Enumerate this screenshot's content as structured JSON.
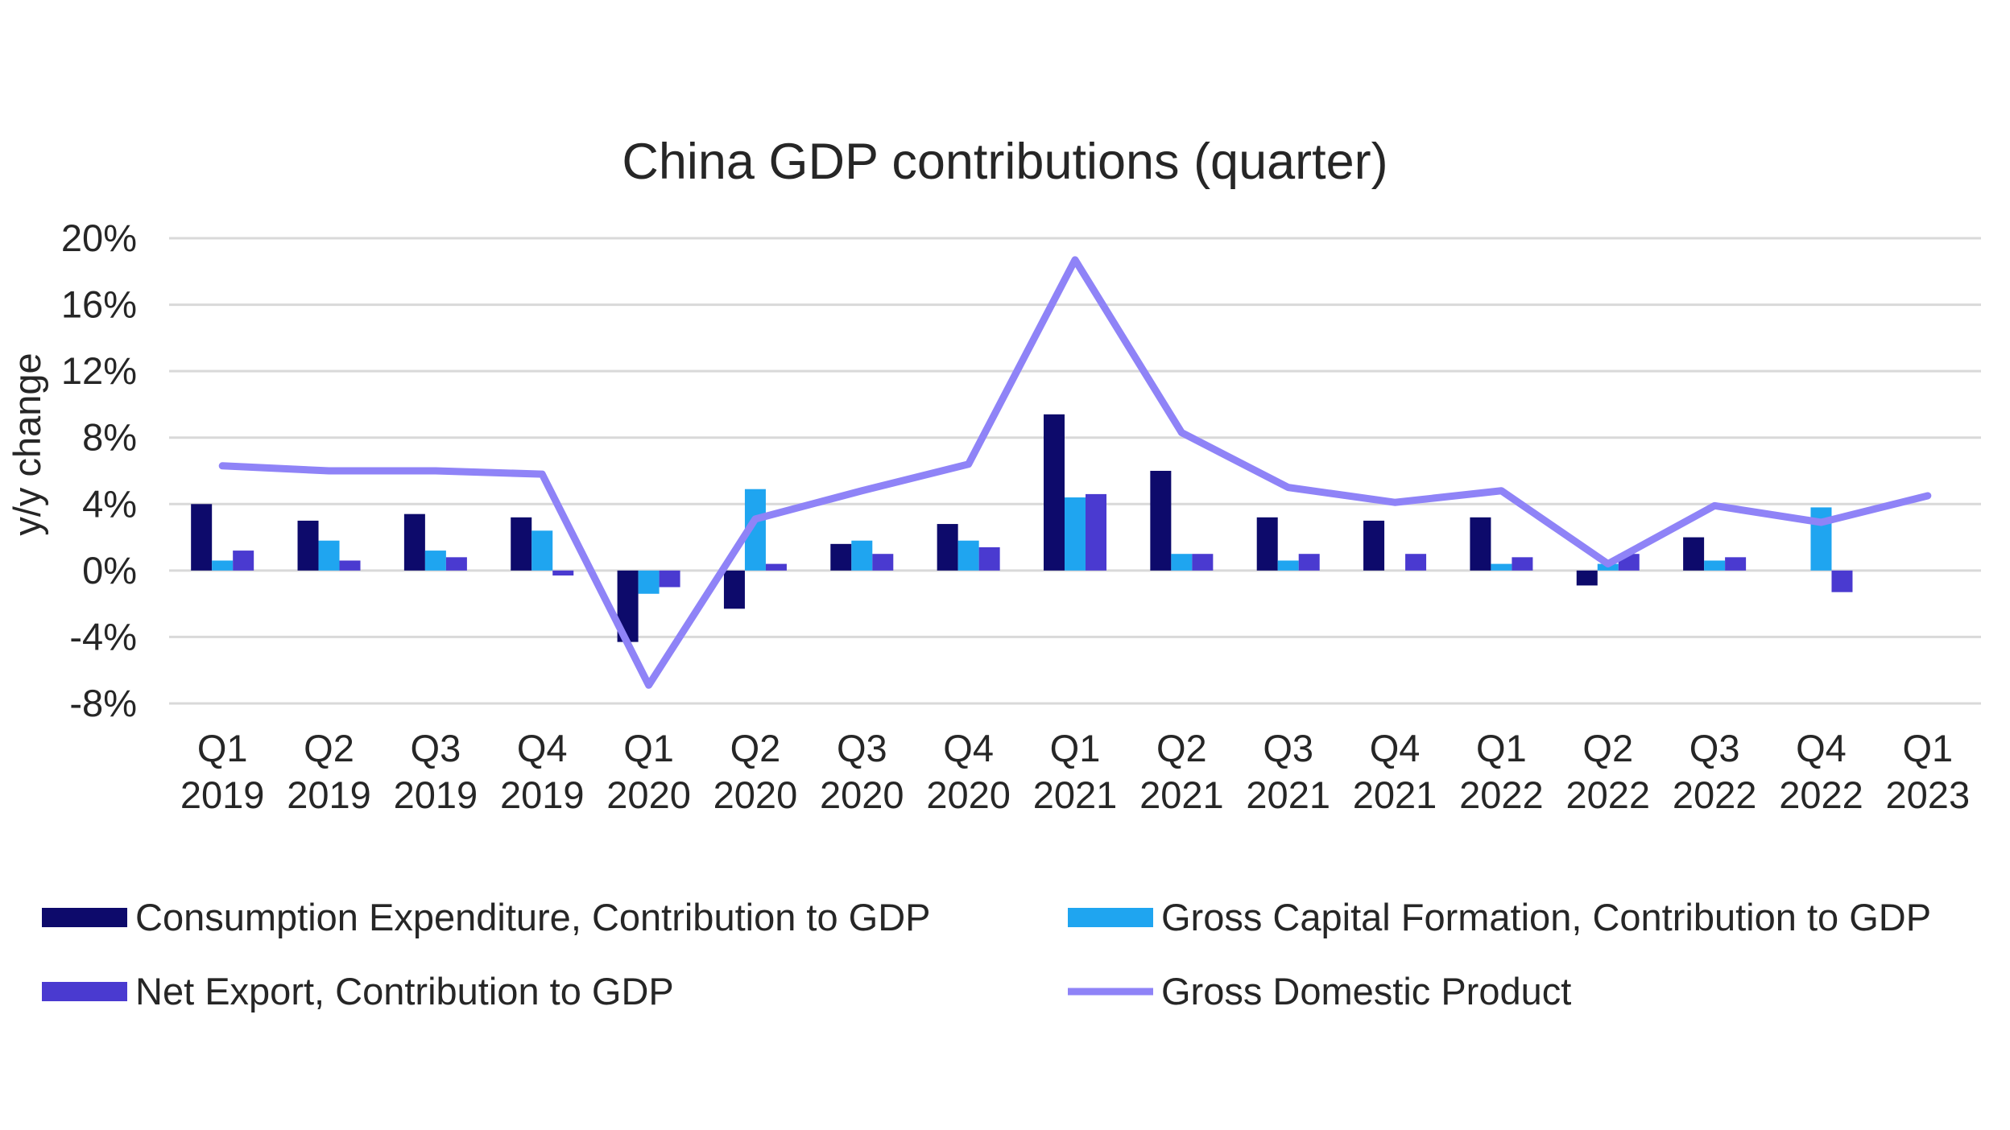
{
  "chart_data": {
    "type": "bar",
    "title": "China GDP contributions  (quarter)",
    "ylabel": "y/y change",
    "xlabel": "",
    "ylim": [
      -8,
      20
    ],
    "yticks": [
      -8,
      -4,
      0,
      4,
      8,
      12,
      16,
      20
    ],
    "ytick_labels": [
      "-8%",
      "-4%",
      "0%",
      "4%",
      "8%",
      "12%",
      "16%",
      "20%"
    ],
    "grid": true,
    "legend_position": "bottom",
    "categories": [
      [
        "Q1",
        "2019"
      ],
      [
        "Q2",
        "2019"
      ],
      [
        "Q3",
        "2019"
      ],
      [
        "Q4",
        "2019"
      ],
      [
        "Q1",
        "2020"
      ],
      [
        "Q2",
        "2020"
      ],
      [
        "Q3",
        "2020"
      ],
      [
        "Q4",
        "2020"
      ],
      [
        "Q1",
        "2021"
      ],
      [
        "Q2",
        "2021"
      ],
      [
        "Q3",
        "2021"
      ],
      [
        "Q4",
        "2021"
      ],
      [
        "Q1",
        "2022"
      ],
      [
        "Q2",
        "2022"
      ],
      [
        "Q3",
        "2022"
      ],
      [
        "Q4",
        "2022"
      ],
      [
        "Q1",
        "2023"
      ]
    ],
    "series": [
      {
        "name": "Consumption Expenditure, Contribution to GDP",
        "kind": "bar",
        "color": "#0d0a6b",
        "values": [
          4.0,
          3.0,
          3.4,
          3.2,
          -4.3,
          -2.3,
          1.6,
          2.8,
          9.4,
          6.0,
          3.2,
          3.0,
          3.2,
          -0.9,
          2.0,
          0,
          null
        ]
      },
      {
        "name": "Gross Capital Formation, Contribution to GDP",
        "kind": "bar",
        "color": "#1fa5f0",
        "values": [
          0.6,
          1.8,
          1.2,
          2.4,
          -1.4,
          4.9,
          1.8,
          1.8,
          4.4,
          1.0,
          0.6,
          0,
          0.4,
          0.4,
          0.6,
          3.8,
          null
        ]
      },
      {
        "name": "Net Export, Contribution to GDP",
        "kind": "bar",
        "color": "#4a3ad0",
        "values": [
          1.2,
          0.6,
          0.8,
          -0.3,
          -1.0,
          0.4,
          1.0,
          1.4,
          4.6,
          1.0,
          1.0,
          1.0,
          0.8,
          1.0,
          0.8,
          -1.3,
          null
        ]
      },
      {
        "name": "Gross Domestic Product",
        "kind": "line",
        "color": "#8f83f7",
        "values": [
          6.3,
          6.0,
          6.0,
          5.8,
          -6.9,
          3.1,
          4.8,
          6.4,
          18.7,
          8.3,
          5.0,
          4.1,
          4.8,
          0.4,
          3.9,
          2.9,
          4.5
        ]
      }
    ]
  }
}
